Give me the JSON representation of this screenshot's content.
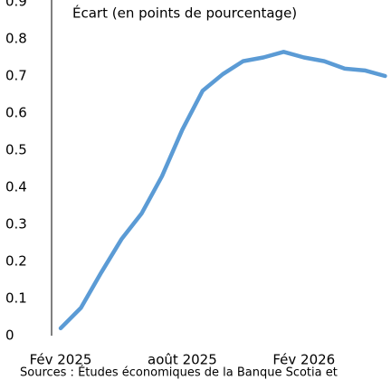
{
  "chart_data": {
    "type": "line",
    "title": "Écart (en points de pourcentage)",
    "source": "Sources : Études économiques de la Banque Scotia et",
    "categories": [
      "Fév 2025",
      null,
      null,
      null,
      null,
      null,
      "août 2025",
      null,
      null,
      null,
      null,
      null,
      "Fév 2026",
      null,
      null,
      null,
      null
    ],
    "series": [
      {
        "name": "Écart",
        "color": "#5b9bd5",
        "values": [
          0.02,
          0.075,
          0.17,
          0.26,
          0.33,
          0.43,
          0.555,
          0.66,
          0.705,
          0.74,
          0.75,
          0.765,
          0.75,
          0.74,
          0.72,
          0.715,
          0.7
        ]
      }
    ],
    "ylim": [
      0,
      0.9
    ],
    "yticks": [
      0,
      0.1,
      0.2,
      0.3,
      0.4,
      0.5,
      0.6,
      0.7,
      0.8,
      0.9
    ],
    "grid": false
  }
}
